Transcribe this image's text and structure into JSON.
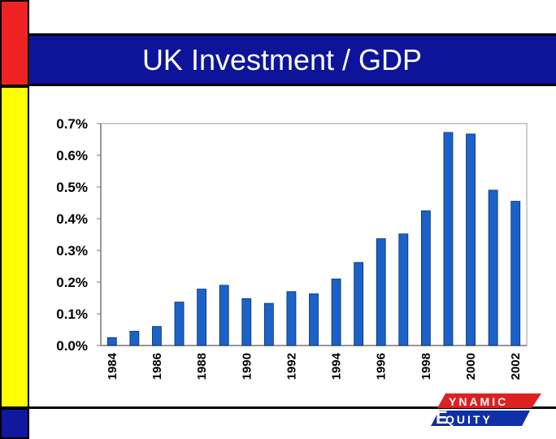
{
  "colors": {
    "red_block": "#ee2222",
    "yellow_block": "#ffff00",
    "blue_block": "#1018a0",
    "title_band": "#0d1499",
    "bar_fill": "#1a62c8",
    "bar_edge": "#0a2f6e",
    "logo_red": "#dd2020",
    "logo_blue": "#1030a8"
  },
  "title": "UK Investment / GDP",
  "logo": {
    "text": "DYNAMIC EQUITY",
    "icon": "dynamic-equity-logo"
  },
  "chart_data": {
    "type": "bar",
    "title": "UK Investment / GDP",
    "xlabel": "",
    "ylabel": "",
    "ylim": [
      0,
      0.7
    ],
    "yticks": [
      "0.0%",
      "0.1%",
      "0.2%",
      "0.3%",
      "0.4%",
      "0.5%",
      "0.6%",
      "0.7%"
    ],
    "xtick_labels": [
      "1984",
      "1986",
      "1988",
      "1990",
      "1992",
      "1994",
      "1996",
      "1998",
      "2000",
      "2002"
    ],
    "grid": false,
    "categories": [
      "1984",
      "1985",
      "1986",
      "1987",
      "1988",
      "1989",
      "1990",
      "1991",
      "1992",
      "1993",
      "1994",
      "1995",
      "1996",
      "1997",
      "1998",
      "1999",
      "2000",
      "2001",
      "2002"
    ],
    "values": [
      0.025,
      0.045,
      0.06,
      0.137,
      0.178,
      0.19,
      0.148,
      0.133,
      0.17,
      0.163,
      0.21,
      0.262,
      0.337,
      0.352,
      0.425,
      0.672,
      0.667,
      0.49,
      0.455
    ],
    "unit": "%"
  }
}
